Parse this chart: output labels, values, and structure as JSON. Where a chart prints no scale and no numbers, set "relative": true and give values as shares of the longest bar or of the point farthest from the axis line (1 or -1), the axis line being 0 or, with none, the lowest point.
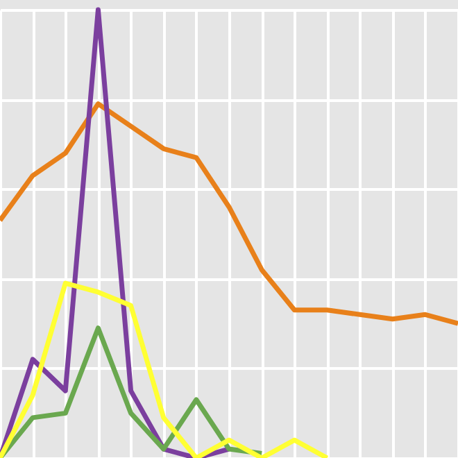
{
  "chart_data": {
    "type": "line",
    "relative": true,
    "grid": true,
    "marker": "none",
    "line_style": "solid",
    "categories": [
      null,
      null,
      null,
      null,
      null,
      null,
      null,
      null,
      null,
      null,
      null,
      null,
      null,
      null,
      null
    ],
    "series": [
      {
        "color": "#e8801a",
        "values": [
          0.53,
          0.63,
          0.68,
          0.79,
          0.74,
          0.69,
          0.67,
          0.56,
          0.42,
          0.33,
          0.33,
          0.32,
          0.31,
          0.32,
          0.3
        ]
      },
      {
        "color": "#7b3f9e",
        "values": [
          0,
          0.22,
          0.15,
          1,
          0.15,
          0.02,
          0,
          0.02,
          null,
          null,
          null,
          null,
          null,
          null,
          null
        ]
      },
      {
        "color": "#6aa84f",
        "values": [
          0,
          0.09,
          0.1,
          0.29,
          0.1,
          0.02,
          0.13,
          0.02,
          0.01,
          null,
          null,
          null,
          null,
          null,
          null
        ]
      },
      {
        "color": "#ffff33",
        "values": [
          0,
          0.14,
          0.39,
          0.37,
          0.34,
          0.09,
          0,
          0.04,
          0,
          0.04,
          0,
          null,
          null,
          null,
          null
        ]
      }
    ]
  }
}
